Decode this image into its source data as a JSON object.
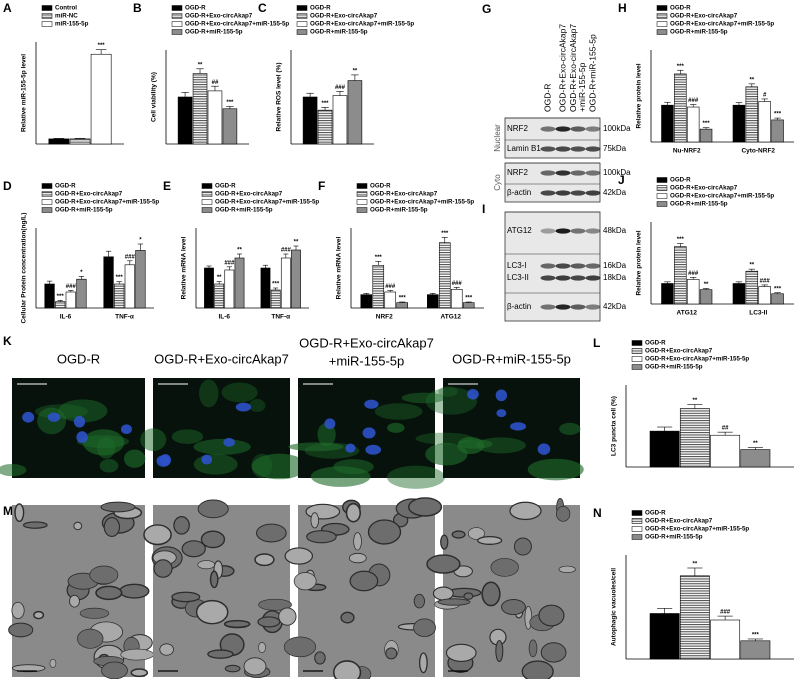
{
  "chart_data": [
    {
      "type": "bar",
      "panel": "A",
      "ylabel": "Relative miR-155-5p level",
      "categories": [
        null
      ],
      "ylim": [
        0,
        20
      ],
      "series": [
        {
          "name": "Control",
          "color": "#000000",
          "values": [
            1
          ],
          "errors": [
            0.1
          ],
          "significance": [
            null
          ]
        },
        {
          "name": "miR-NC",
          "color": "#555555",
          "pattern": "hatch",
          "values": [
            1
          ],
          "errors": [
            0.1
          ],
          "significance": [
            null
          ]
        },
        {
          "name": "miR-155-5p",
          "color": "#ffffff",
          "values": [
            17.6
          ],
          "errors": [
            0.9
          ],
          "significance": [
            "***"
          ]
        }
      ]
    },
    {
      "type": "bar",
      "panel": "B",
      "ylabel": "Cell viability (%)",
      "categories": [
        null
      ],
      "ylim": [
        0,
        200
      ],
      "series": [
        {
          "name": "OGD-R",
          "color": "#000000",
          "values": [
            100
          ],
          "errors": [
            10
          ],
          "significance": [
            null
          ]
        },
        {
          "name": "OGD-R+Exo-circAkap7",
          "color": "#555555",
          "pattern": "hatch",
          "values": [
            150
          ],
          "errors": [
            10
          ],
          "significance": [
            "**"
          ]
        },
        {
          "name": "OGD-R+Exo-circAkap7+miR-155-5p",
          "color": "#ffffff",
          "values": [
            113
          ],
          "errors": [
            10
          ],
          "significance": [
            "##"
          ]
        },
        {
          "name": "OGD-R+miR-155-5p",
          "color": "#8c8c8c",
          "values": [
            75
          ],
          "errors": [
            5
          ],
          "significance": [
            "***"
          ]
        }
      ]
    },
    {
      "type": "bar",
      "panel": "C",
      "ylabel": "Relative ROS level (%)",
      "categories": [
        null
      ],
      "ylim": [
        0,
        200
      ],
      "series": [
        {
          "name": "OGD-R",
          "color": "#000000",
          "values": [
            100
          ],
          "errors": [
            8
          ],
          "significance": [
            null
          ]
        },
        {
          "name": "OGD-R+Exo-circAkap7",
          "color": "#555555",
          "pattern": "hatch",
          "values": [
            72
          ],
          "errors": [
            6
          ],
          "significance": [
            "***"
          ]
        },
        {
          "name": "OGD-R+Exo-circAkap7+miR-155-5p",
          "color": "#ffffff",
          "values": [
            103
          ],
          "errors": [
            9
          ],
          "significance": [
            "###"
          ]
        },
        {
          "name": "OGD-R+miR-155-5p",
          "color": "#8c8c8c",
          "values": [
            135
          ],
          "errors": [
            12
          ],
          "significance": [
            "**"
          ]
        }
      ]
    },
    {
      "type": "bar",
      "panel": "H",
      "ylabel": "Relative protein level",
      "categories": [
        "Nu-NRF2",
        "Cyto-NRF2"
      ],
      "ylim": [
        0,
        2.5
      ],
      "series": [
        {
          "name": "OGD-R",
          "color": "#000000",
          "values": [
            1,
            1
          ],
          "errors": [
            0.08,
            0.07
          ],
          "significance": [
            null,
            null
          ]
        },
        {
          "name": "OGD-R+Exo-circAkap7",
          "color": "#555555",
          "pattern": "hatch",
          "values": [
            1.85,
            1.5
          ],
          "errors": [
            0.1,
            0.08
          ],
          "significance": [
            "***",
            "**"
          ]
        },
        {
          "name": "OGD-R+Exo-circAkap7+miR-155-5p",
          "color": "#ffffff",
          "values": [
            0.95,
            1.1
          ],
          "errors": [
            0.07,
            0.07
          ],
          "significance": [
            "###",
            "#"
          ]
        },
        {
          "name": "OGD-R+miR-155-5p",
          "color": "#8c8c8c",
          "values": [
            0.35,
            0.6
          ],
          "errors": [
            0.04,
            0.05
          ],
          "significance": [
            "***",
            "***"
          ]
        }
      ]
    },
    {
      "type": "bar",
      "panel": "D",
      "ylabel": "Cellular Protein concentration(ng/L)",
      "categories": [
        "IL-6",
        "TNF-α"
      ],
      "ylim": [
        0,
        500
      ],
      "series": [
        {
          "name": "OGD-R",
          "color": "#000000",
          "values": [
            150,
            320
          ],
          "errors": [
            18,
            35
          ],
          "significance": [
            null,
            null
          ]
        },
        {
          "name": "OGD-R+Exo-circAkap7",
          "color": "#555555",
          "pattern": "hatch",
          "values": [
            40,
            150
          ],
          "errors": [
            8,
            15
          ],
          "significance": [
            "***",
            "***"
          ]
        },
        {
          "name": "OGD-R+Exo-circAkap7+miR-155-5p",
          "color": "#ffffff",
          "values": [
            100,
            270
          ],
          "errors": [
            10,
            25
          ],
          "significance": [
            "###",
            "###"
          ]
        },
        {
          "name": "OGD-R+miR-155-5p",
          "color": "#8c8c8c",
          "values": [
            180,
            360
          ],
          "errors": [
            18,
            40
          ],
          "significance": [
            "*",
            "*"
          ]
        }
      ]
    },
    {
      "type": "bar",
      "panel": "E",
      "ylabel": "Relative mRNA level",
      "categories": [
        "IL-6",
        "TNF-α"
      ],
      "ylim": [
        0,
        2
      ],
      "series": [
        {
          "name": "OGD-R",
          "color": "#000000",
          "values": [
            1,
            1
          ],
          "errors": [
            0.05,
            0.07
          ],
          "significance": [
            null,
            null
          ]
        },
        {
          "name": "OGD-R+Exo-circAkap7",
          "color": "#555555",
          "pattern": "hatch",
          "values": [
            0.6,
            0.45
          ],
          "errors": [
            0.06,
            0.05
          ],
          "significance": [
            "**",
            "***"
          ]
        },
        {
          "name": "OGD-R+Exo-circAkap7+miR-155-5p",
          "color": "#ffffff",
          "values": [
            0.95,
            1.25
          ],
          "errors": [
            0.08,
            0.1
          ],
          "significance": [
            "###",
            "###"
          ]
        },
        {
          "name": "OGD-R+miR-155-5p",
          "color": "#8c8c8c",
          "values": [
            1.25,
            1.45
          ],
          "errors": [
            0.1,
            0.1
          ],
          "significance": [
            "**",
            "**"
          ]
        }
      ]
    },
    {
      "type": "bar",
      "panel": "F",
      "ylabel": "Relative mRNA level",
      "categories": [
        "NRF2",
        "ATG12"
      ],
      "ylim": [
        0,
        6
      ],
      "series": [
        {
          "name": "OGD-R",
          "color": "#000000",
          "values": [
            1,
            1
          ],
          "errors": [
            0.1,
            0.1
          ],
          "significance": [
            null,
            null
          ]
        },
        {
          "name": "OGD-R+Exo-circAkap7",
          "color": "#555555",
          "pattern": "hatch",
          "values": [
            3.2,
            4.9
          ],
          "errors": [
            0.3,
            0.4
          ],
          "significance": [
            "***",
            "***"
          ]
        },
        {
          "name": "OGD-R+Exo-circAkap7+miR-155-5p",
          "color": "#ffffff",
          "values": [
            1.2,
            1.4
          ],
          "errors": [
            0.12,
            0.15
          ],
          "significance": [
            "###",
            "###"
          ]
        },
        {
          "name": "OGD-R+miR-155-5p",
          "color": "#8c8c8c",
          "values": [
            0.4,
            0.4
          ],
          "errors": [
            0.05,
            0.05
          ],
          "significance": [
            "***",
            "***"
          ]
        }
      ]
    },
    {
      "type": "bar",
      "panel": "J",
      "ylabel": "Relative protein level",
      "categories": [
        "ATG12",
        "LC3-II"
      ],
      "ylim": [
        0,
        4
      ],
      "series": [
        {
          "name": "OGD-R",
          "color": "#000000",
          "values": [
            1,
            1
          ],
          "errors": [
            0.08,
            0.08
          ],
          "significance": [
            null,
            null
          ]
        },
        {
          "name": "OGD-R+Exo-circAkap7",
          "color": "#555555",
          "pattern": "hatch",
          "values": [
            2.8,
            1.6
          ],
          "errors": [
            0.15,
            0.1
          ],
          "significance": [
            "***",
            "**"
          ]
        },
        {
          "name": "OGD-R+Exo-circAkap7+miR-155-5p",
          "color": "#ffffff",
          "values": [
            1.2,
            0.85
          ],
          "errors": [
            0.1,
            0.08
          ],
          "significance": [
            "###",
            "###"
          ]
        },
        {
          "name": "OGD-R+miR-155-5p",
          "color": "#8c8c8c",
          "values": [
            0.7,
            0.5
          ],
          "errors": [
            0.06,
            0.05
          ],
          "significance": [
            "**",
            "***"
          ]
        }
      ]
    },
    {
      "type": "bar",
      "panel": "L",
      "ylabel": "LC3 puncta cell (%)",
      "categories": [
        null
      ],
      "ylim": [
        0,
        80
      ],
      "series": [
        {
          "name": "OGD-R",
          "color": "#000000",
          "values": [
            35
          ],
          "errors": [
            4
          ],
          "significance": [
            null
          ]
        },
        {
          "name": "OGD-R+Exo-circAkap7",
          "color": "#555555",
          "pattern": "hatch",
          "values": [
            57
          ],
          "errors": [
            4
          ],
          "significance": [
            "**"
          ]
        },
        {
          "name": "OGD-R+Exo-circAkap7+miR-155-5p",
          "color": "#ffffff",
          "values": [
            31
          ],
          "errors": [
            3
          ],
          "significance": [
            "##"
          ]
        },
        {
          "name": "OGD-R+miR-155-5p",
          "color": "#8c8c8c",
          "values": [
            17
          ],
          "errors": [
            2
          ],
          "significance": [
            "**"
          ]
        }
      ]
    },
    {
      "type": "bar",
      "panel": "N",
      "ylabel": "Autophagic vacuoles/cell",
      "categories": [
        null
      ],
      "ylim": [
        0,
        40
      ],
      "series": [
        {
          "name": "OGD-R",
          "color": "#000000",
          "values": [
            17.5
          ],
          "errors": [
            2
          ],
          "significance": [
            null
          ]
        },
        {
          "name": "OGD-R+Exo-circAkap7",
          "color": "#555555",
          "pattern": "hatch",
          "values": [
            32
          ],
          "errors": [
            3
          ],
          "significance": [
            "**"
          ]
        },
        {
          "name": "OGD-R+Exo-circAkap7+miR-155-5p",
          "color": "#ffffff",
          "values": [
            15
          ],
          "errors": [
            1.5
          ],
          "significance": [
            "###"
          ]
        },
        {
          "name": "OGD-R+miR-155-5p",
          "color": "#8c8c8c",
          "values": [
            7
          ],
          "errors": [
            0.7
          ],
          "significance": [
            "***"
          ]
        }
      ]
    }
  ],
  "blots": [
    {
      "panel": "G",
      "lanes": [
        [
          "OGD-R"
        ],
        [
          "OGD-R+Exo-circAkap7"
        ],
        [
          "OGD-R+Exo-circAkap7",
          "+miR-155-5p"
        ],
        [
          "OGD-R+miR-155-5p"
        ]
      ],
      "groups": [
        {
          "name": "Nuclear",
          "rows": [
            {
              "labels": [
                "NRF2"
              ],
              "sizes": [
                "100kDa"
              ]
            },
            {
              "labels": [
                "Lamin B1"
              ],
              "sizes": [
                "75kDa"
              ]
            }
          ]
        },
        {
          "name": "Cyto",
          "rows": [
            {
              "labels": [
                "NRF2"
              ],
              "sizes": [
                "100kDa"
              ]
            },
            {
              "labels": [
                "β-actin"
              ],
              "sizes": [
                "42kDa"
              ]
            }
          ]
        }
      ]
    },
    {
      "panel": "I",
      "groups": [
        {
          "rows": [
            {
              "labels": [
                "ATG12"
              ],
              "sizes": [
                "48kDa"
              ]
            },
            {
              "labels": [
                "LC3-I",
                "LC3-II"
              ],
              "sizes": [
                "16kDa",
                "18kDa"
              ]
            },
            {
              "labels": [
                "β-actin"
              ],
              "sizes": [
                "42kDa"
              ]
            }
          ]
        }
      ]
    }
  ],
  "micrographs": [
    {
      "panel": "K",
      "titles": [
        [
          "OGD-R"
        ],
        [
          "OGD-R+Exo-circAkap7"
        ],
        [
          "OGD-R+Exo-circAkap7",
          "+miR-155-5p"
        ],
        [
          "OGD-R+miR-155-5p"
        ]
      ]
    },
    {
      "panel": "M"
    }
  ]
}
